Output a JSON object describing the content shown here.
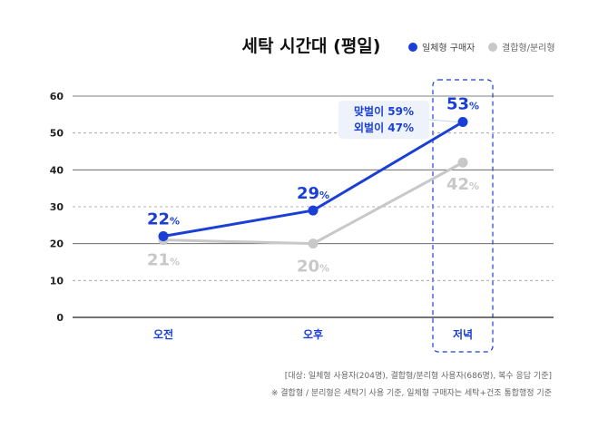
{
  "chart_data": {
    "type": "line",
    "title": "세탁 시간대 (평일)",
    "categories": [
      "오전",
      "오후",
      "저녁"
    ],
    "ylim": [
      0,
      60
    ],
    "yticks": [
      0,
      10,
      20,
      30,
      40,
      50,
      60
    ],
    "grid": true,
    "legend_position": "top-right",
    "series": [
      {
        "name": "일체형 구매자",
        "values": [
          22,
          29,
          53
        ],
        "color": "#1a3fd6",
        "labels": [
          "22",
          "29",
          "53"
        ]
      },
      {
        "name": "결합형/분리형",
        "values": [
          21,
          20,
          42
        ],
        "color": "#c8c8c8",
        "labels": [
          "21",
          "20",
          "42"
        ]
      }
    ],
    "value_suffix": "%",
    "highlight_category": "저녁",
    "callout": {
      "lines": [
        "맞벌이 59%",
        "외벌이 47%"
      ]
    },
    "footnotes": [
      "[대상: 일체형 사용자(204명), 결합형/분리형 사용자(686명), 복수 응답 기준]",
      "※ 결합형 / 분리형은 세탁기 사용 기준, 일체형 구매자는 세탁+건조 통합행정 기준"
    ],
    "colors": {
      "primary": "#1a3fd6",
      "secondary": "#c8c8c8",
      "axis": "#222222",
      "text": "#333333",
      "muted": "#666666"
    }
  }
}
